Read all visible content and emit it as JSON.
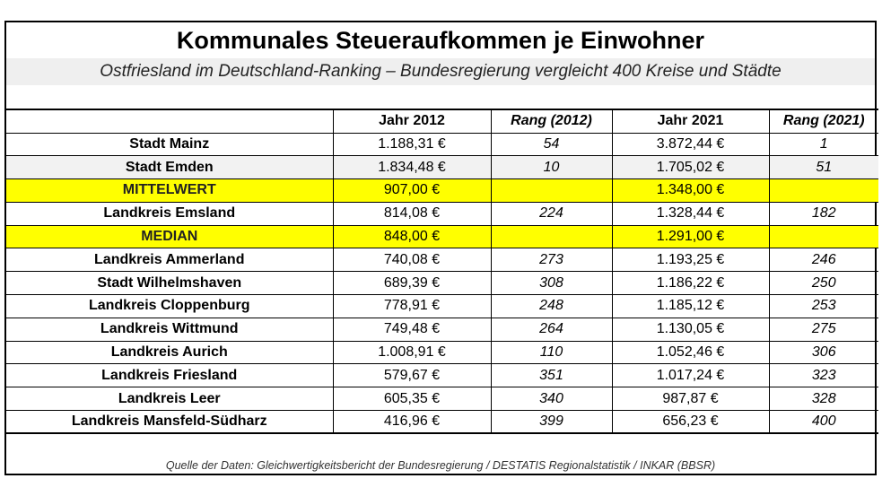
{
  "title": "Kommunales Steueraufkommen je Einwohner",
  "subtitle": "Ostfriesland im Deutschland-Ranking – Bundesregierung vergleicht 400 Kreise und Städte",
  "colors": {
    "highlight": "#ffff00",
    "alt_row": "#f2f2f2",
    "subtitle_bg": "#efefef"
  },
  "chart_data": {
    "type": "table",
    "columns": [
      "",
      "Jahr 2012",
      "Rang (2012)",
      "Jahr 2021",
      "Rang (2021)"
    ],
    "rows": [
      {
        "name": "Stadt Mainz",
        "y2012": "1.188,31 €",
        "r2012": "54",
        "y2021": "3.872,44 €",
        "r2021": "1",
        "style": "normal"
      },
      {
        "name": "Stadt Emden",
        "y2012": "1.834,48 €",
        "r2012": "10",
        "y2021": "1.705,02 €",
        "r2021": "51",
        "style": "alt"
      },
      {
        "name": "MITTELWERT",
        "y2012": "907,00 €",
        "r2012": "",
        "y2021": "1.348,00 €",
        "r2021": "",
        "style": "highlight"
      },
      {
        "name": "Landkreis Emsland",
        "y2012": "814,08 €",
        "r2012": "224",
        "y2021": "1.328,44 €",
        "r2021": "182",
        "style": "normal"
      },
      {
        "name": "MEDIAN",
        "y2012": "848,00 €",
        "r2012": "",
        "y2021": "1.291,00 €",
        "r2021": "",
        "style": "highlight"
      },
      {
        "name": "Landkreis Ammerland",
        "y2012": "740,08 €",
        "r2012": "273",
        "y2021": "1.193,25 €",
        "r2021": "246",
        "style": "normal"
      },
      {
        "name": "Stadt Wilhelmshaven",
        "y2012": "689,39 €",
        "r2012": "308",
        "y2021": "1.186,22 €",
        "r2021": "250",
        "style": "normal"
      },
      {
        "name": "Landkreis Cloppenburg",
        "y2012": "778,91 €",
        "r2012": "248",
        "y2021": "1.185,12 €",
        "r2021": "253",
        "style": "normal"
      },
      {
        "name": "Landkreis Wittmund",
        "y2012": "749,48 €",
        "r2012": "264",
        "y2021": "1.130,05 €",
        "r2021": "275",
        "style": "normal"
      },
      {
        "name": "Landkreis Aurich",
        "y2012": "1.008,91 €",
        "r2012": "110",
        "y2021": "1.052,46 €",
        "r2021": "306",
        "style": "normal"
      },
      {
        "name": "Landkreis Friesland",
        "y2012": "579,67 €",
        "r2012": "351",
        "y2021": "1.017,24 €",
        "r2021": "323",
        "style": "normal"
      },
      {
        "name": "Landkreis Leer",
        "y2012": "605,35 €",
        "r2012": "340",
        "y2021": "987,87 €",
        "r2021": "328",
        "style": "normal"
      },
      {
        "name": "Landkreis Mansfeld-Südharz",
        "y2012": "416,96 €",
        "r2012": "399",
        "y2021": "656,23 €",
        "r2021": "400",
        "style": "normal"
      }
    ]
  },
  "footer": "Quelle der Daten: Gleichwertigkeitsbericht der Bundesregierung / DESTATIS Regionalstatistik / INKAR (BBSR)"
}
